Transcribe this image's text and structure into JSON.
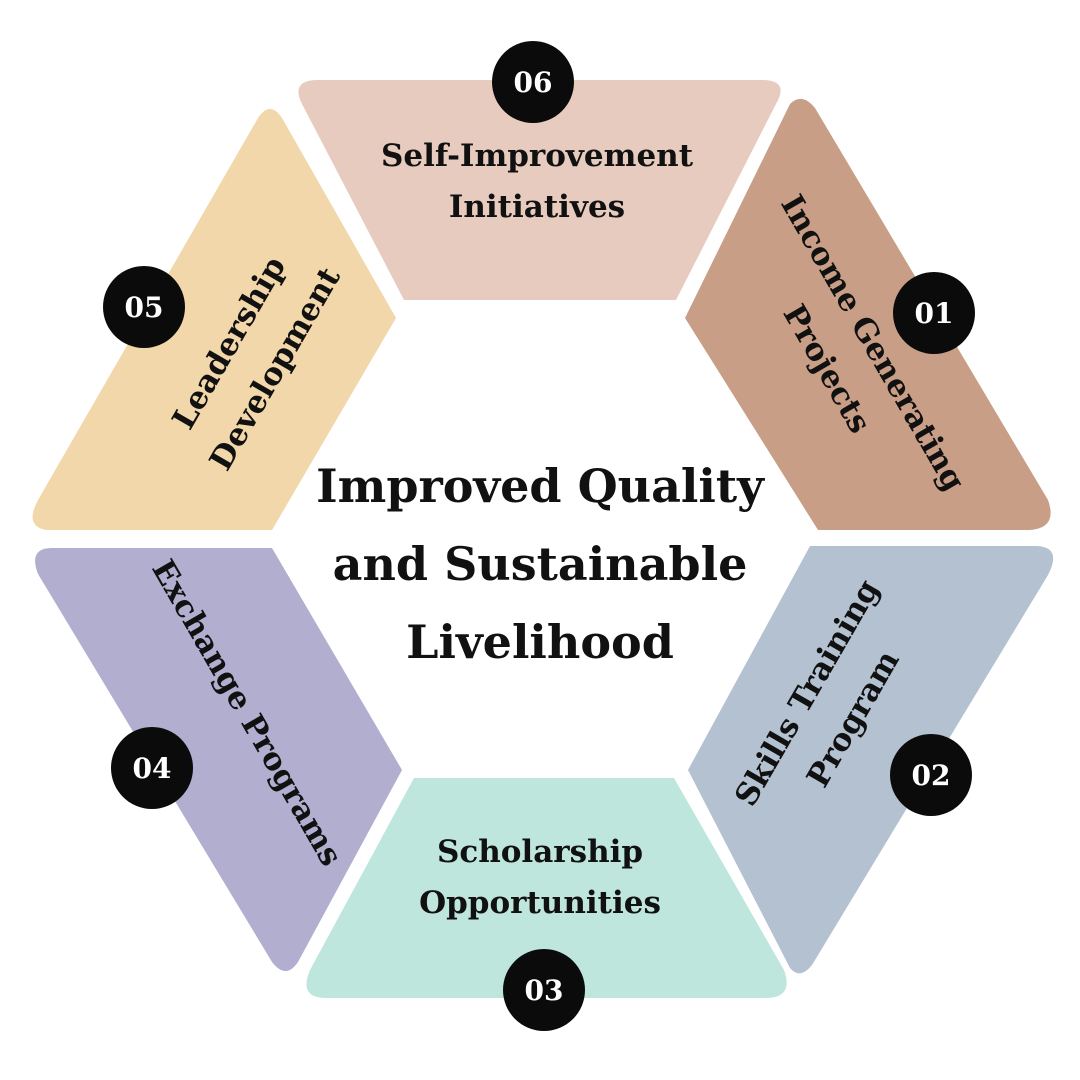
{
  "center": {
    "lines": [
      "Improved Quality",
      "and Sustainable",
      "Livelihood"
    ]
  },
  "segments": [
    {
      "number": "01",
      "lines": [
        "Income Generating",
        "Projects"
      ],
      "color": "#c99e86"
    },
    {
      "number": "02",
      "lines": [
        "Skills Training",
        "Program"
      ],
      "color": "#b4c1d0"
    },
    {
      "number": "03",
      "lines": [
        "Scholarship",
        "Opportunities"
      ],
      "color": "#bee6dc"
    },
    {
      "number": "04",
      "lines": [
        "Exchange Programs"
      ],
      "color": "#b1aed0"
    },
    {
      "number": "05",
      "lines": [
        "Leadership",
        "Development"
      ],
      "color": "#f1d7a9"
    },
    {
      "number": "06",
      "lines": [
        "Self-Improvement",
        "Initiatives"
      ],
      "color": "#e8cbbf"
    }
  ],
  "badge_color": "#0b0b0b"
}
